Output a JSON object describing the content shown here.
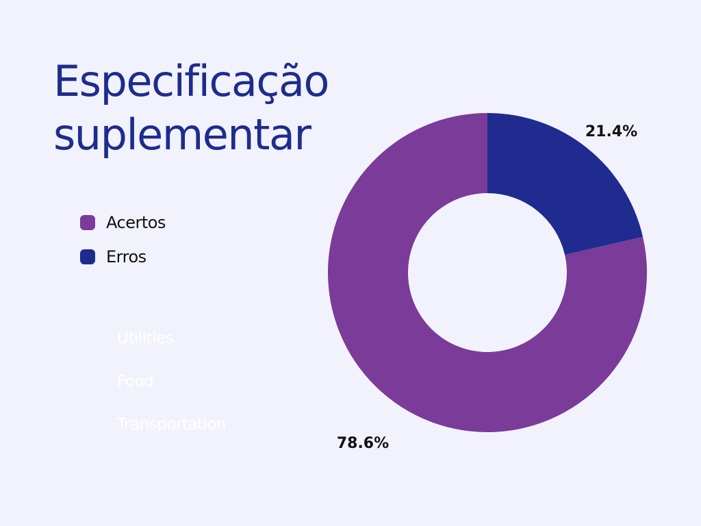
{
  "colors": {
    "background": "#f2f2fd",
    "title": "#1e2c8c",
    "text": "#111111",
    "acertos": "#7b3b98",
    "erros": "#1f2b8f",
    "ghost_text": "#ffffff"
  },
  "title_lines": [
    "Especificação",
    "suplementar"
  ],
  "legend": [
    {
      "label": "Acertos",
      "color": "#7b3b98"
    },
    {
      "label": "Erros",
      "color": "#1f2b8f"
    }
  ],
  "ghost_labels": [
    "Utilities",
    "Food",
    "Transportation"
  ],
  "chart_data": {
    "type": "pie",
    "variant": "donut",
    "title": "Especificação suplementar",
    "categories": [
      "Acertos",
      "Erros"
    ],
    "values": [
      78.6,
      21.4
    ],
    "unit": "%",
    "data_labels": [
      "78.6%",
      "21.4%"
    ],
    "colors": [
      "#7b3b98",
      "#1f2b8f"
    ],
    "legend_position": "left"
  }
}
